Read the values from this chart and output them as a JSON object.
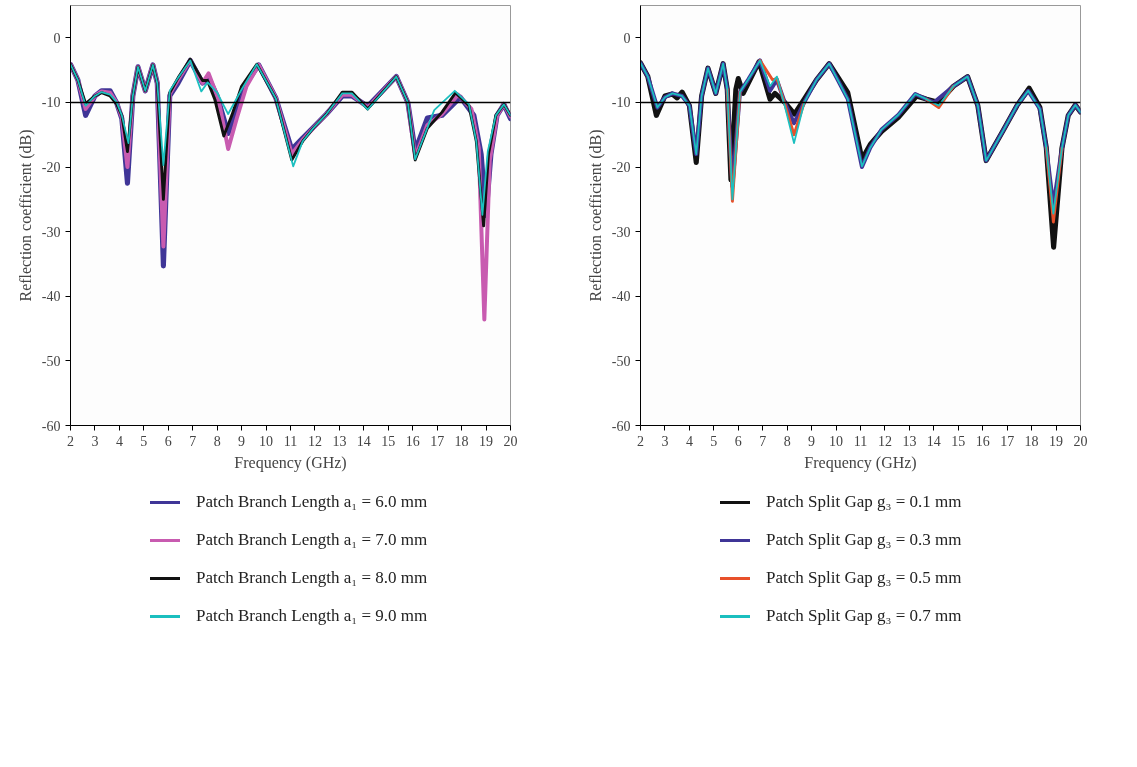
{
  "chart_data": [
    {
      "type": "line",
      "xlabel": "Frequency (GHz)",
      "ylabel": "Reflection coefficient (dB)",
      "xlim": [
        2,
        20
      ],
      "ylim": [
        -60,
        5
      ],
      "xticks": [
        2,
        3,
        4,
        5,
        6,
        7,
        8,
        9,
        10,
        11,
        12,
        13,
        14,
        15,
        16,
        17,
        18,
        19,
        20
      ],
      "yticks": [
        -60,
        -50,
        -40,
        -30,
        -20,
        -10,
        0
      ],
      "legend": "bottom",
      "grid": false,
      "line_style": "solid",
      "ref_lines": [
        {
          "axis": "y",
          "value": -10,
          "color": "#000000"
        }
      ],
      "series": [
        {
          "name": "Patch Branch Length a₁ = 6.0 mm",
          "color": "#3f3597",
          "x": [
            2.0,
            2.3,
            2.62,
            3.0,
            3.27,
            3.62,
            3.88,
            4.1,
            4.33,
            4.55,
            4.76,
            5.06,
            5.37,
            5.55,
            5.8,
            6.06,
            6.4,
            6.9,
            7.4,
            7.65,
            8.0,
            8.45,
            8.8,
            9.2,
            9.7,
            10.4,
            11.05,
            11.5,
            11.95,
            12.47,
            13.12,
            13.51,
            14.16,
            15.33,
            15.8,
            16.1,
            16.6,
            17.2,
            17.95,
            18.5,
            18.8,
            19.0,
            19.2,
            19.45,
            19.73,
            20.0
          ],
          "values": [
            -4.1,
            -6.5,
            -12,
            -9,
            -8.2,
            -8.2,
            -10,
            -12.5,
            -22.5,
            -9,
            -4.5,
            -8.2,
            -4.2,
            -7,
            -35.3,
            -9,
            -7,
            -3.5,
            -7,
            -6.2,
            -9,
            -14.8,
            -11,
            -7,
            -4.2,
            -9.3,
            -17.3,
            -15.5,
            -13.8,
            -11.8,
            -9,
            -9,
            -10.6,
            -6.0,
            -10,
            -17.5,
            -12.4,
            -12,
            -9.2,
            -12,
            -18,
            -27.5,
            -18,
            -12,
            -10.3,
            -12.5
          ]
        },
        {
          "name": "Patch Branch Length a₁ = 7.0 mm",
          "color": "#c85bb0",
          "x": [
            2.0,
            2.3,
            2.62,
            3.0,
            3.27,
            3.62,
            3.88,
            4.1,
            4.33,
            4.55,
            4.76,
            5.06,
            5.37,
            5.55,
            5.8,
            6.06,
            6.4,
            6.9,
            7.4,
            7.65,
            8.05,
            8.45,
            8.8,
            9.2,
            9.7,
            10.4,
            11.05,
            11.5,
            11.95,
            12.47,
            13.12,
            13.51,
            14.16,
            15.33,
            15.8,
            16.1,
            16.6,
            17.2,
            17.85,
            18.4,
            18.7,
            18.93,
            19.15,
            19.45,
            19.73,
            20.0
          ],
          "values": [
            -4.1,
            -6.5,
            -11,
            -9,
            -8.3,
            -8.5,
            -10,
            -12.3,
            -20,
            -9,
            -4.5,
            -8.2,
            -4.2,
            -7,
            -32.3,
            -8.7,
            -6.5,
            -3.5,
            -7,
            -5.5,
            -9.5,
            -17.2,
            -12.5,
            -7.5,
            -4.2,
            -9.3,
            -18,
            -15.8,
            -13.9,
            -11.8,
            -8.8,
            -8.8,
            -10.8,
            -6.0,
            -10,
            -18.5,
            -13.5,
            -11.8,
            -8.8,
            -11,
            -17,
            -43.6,
            -19,
            -12,
            -10.3,
            -12.2
          ]
        },
        {
          "name": "Patch Branch Length a₁ = 8.0 mm",
          "color": "#111111",
          "x": [
            2.0,
            2.3,
            2.62,
            3.0,
            3.27,
            3.62,
            3.88,
            4.1,
            4.33,
            4.55,
            4.76,
            5.06,
            5.37,
            5.55,
            5.8,
            6.06,
            6.4,
            6.9,
            7.4,
            7.6,
            7.9,
            8.27,
            8.6,
            9.0,
            9.62,
            10.4,
            11.05,
            11.5,
            11.95,
            12.47,
            13.12,
            13.51,
            14.16,
            15.33,
            15.8,
            16.1,
            16.6,
            17.2,
            17.75,
            18.3,
            18.6,
            18.9,
            19.1,
            19.4,
            19.73,
            20.0
          ],
          "values": [
            -4.1,
            -6.5,
            -10.2,
            -9,
            -8.5,
            -9,
            -10.2,
            -12,
            -17.6,
            -9,
            -4.5,
            -8.2,
            -4.2,
            -7,
            -25,
            -8.5,
            -6.2,
            -3.3,
            -6.6,
            -6.6,
            -9.5,
            -15.2,
            -12,
            -7.5,
            -4.1,
            -9.4,
            -18.9,
            -16,
            -13.9,
            -11.8,
            -8.4,
            -8.4,
            -11,
            -6.0,
            -10,
            -18.9,
            -14,
            -11.5,
            -8.5,
            -10.5,
            -16,
            -29.1,
            -18,
            -12,
            -10.3,
            -12
          ]
        },
        {
          "name": "Patch Branch Length a₁ = 9.0 mm",
          "color": "#1bbfbf",
          "x": [
            2.0,
            2.3,
            2.62,
            3.0,
            3.27,
            3.62,
            3.88,
            4.1,
            4.37,
            4.55,
            4.76,
            5.06,
            5.37,
            5.55,
            5.8,
            6.06,
            6.4,
            6.9,
            7.35,
            7.61,
            8.0,
            8.45,
            9.0,
            9.62,
            10.4,
            11.11,
            11.5,
            11.95,
            12.47,
            13.12,
            13.51,
            14.16,
            15.33,
            15.8,
            16.1,
            16.88,
            17.72,
            18.3,
            18.6,
            18.85,
            19.07,
            19.4,
            19.73,
            20.0
          ],
          "values": [
            -4.1,
            -6.5,
            -10.5,
            -9,
            -8.4,
            -8.8,
            -9.9,
            -12,
            -16.3,
            -9,
            -4.5,
            -8.2,
            -4.2,
            -7,
            -19.7,
            -8.2,
            -6.2,
            -3.5,
            -8.3,
            -6.9,
            -8.5,
            -11.8,
            -8,
            -4.1,
            -9.4,
            -19.9,
            -16,
            -13.9,
            -11.8,
            -8.6,
            -8.6,
            -11.1,
            -6.0,
            -10,
            -18.8,
            -11.2,
            -8.2,
            -10.3,
            -16,
            -27.4,
            -17.6,
            -12,
            -10.3,
            -12
          ]
        }
      ]
    },
    {
      "type": "line",
      "xlabel": "Frequency (GHz)",
      "ylabel": "Reflection coefficient (dB)",
      "xlim": [
        2,
        20
      ],
      "ylim": [
        -60,
        5
      ],
      "xticks": [
        2,
        3,
        4,
        5,
        6,
        7,
        8,
        9,
        10,
        11,
        12,
        13,
        14,
        15,
        16,
        17,
        18,
        19,
        20
      ],
      "yticks": [
        -60,
        -50,
        -40,
        -30,
        -20,
        -10,
        0
      ],
      "legend": "bottom",
      "grid": false,
      "line_style": "solid",
      "ref_lines": [
        {
          "axis": "y",
          "value": -10,
          "color": "#000000"
        }
      ],
      "series": [
        {
          "name": "Patch Split Gap g₃ = 0.1 mm",
          "color": "#111111",
          "x": [
            2.0,
            2.3,
            2.65,
            3.0,
            3.3,
            3.5,
            3.7,
            4.0,
            4.28,
            4.5,
            4.76,
            5.08,
            5.38,
            5.55,
            5.7,
            5.9,
            6.0,
            6.2,
            6.85,
            7.3,
            7.5,
            7.9,
            8.3,
            8.7,
            9.2,
            9.72,
            10.48,
            11.06,
            11.4,
            11.86,
            12.55,
            13.3,
            13.7,
            14.2,
            14.8,
            15.38,
            15.8,
            16.14,
            16.83,
            17.4,
            17.9,
            18.34,
            18.6,
            18.9,
            19.24,
            19.5,
            19.79,
            20.0
          ],
          "values": [
            -3.9,
            -6,
            -12,
            -9,
            -8.7,
            -9.3,
            -8.4,
            -10.5,
            -19.3,
            -9,
            -4.7,
            -8.6,
            -4.0,
            -8,
            -22,
            -8,
            -6.3,
            -8.6,
            -3.7,
            -9.5,
            -8.6,
            -10,
            -11.8,
            -9.5,
            -6.5,
            -4.0,
            -8.5,
            -18.8,
            -16.5,
            -14.5,
            -12.3,
            -9,
            -9.5,
            -10,
            -7.5,
            -6.0,
            -10.5,
            -19.0,
            -14.4,
            -10.5,
            -7.8,
            -10.8,
            -17,
            -32.4,
            -17.1,
            -12,
            -10.4,
            -11.5
          ]
        },
        {
          "name": "Patch Split Gap g₃ = 0.3 mm",
          "color": "#3f3597",
          "x": [
            2.0,
            2.3,
            2.69,
            3.0,
            3.31,
            3.7,
            4.0,
            4.28,
            4.5,
            4.76,
            5.08,
            5.38,
            5.55,
            5.76,
            6.07,
            6.4,
            6.89,
            7.3,
            7.58,
            7.9,
            8.28,
            8.7,
            9.2,
            9.72,
            10.48,
            11.06,
            11.4,
            11.86,
            12.55,
            13.24,
            13.7,
            14.0,
            14.8,
            15.38,
            15.8,
            16.14,
            16.83,
            17.4,
            17.86,
            18.34,
            18.6,
            18.89,
            19.24,
            19.5,
            19.79,
            20.0
          ],
          "values": [
            -3.9,
            -6,
            -10.8,
            -9.2,
            -8.6,
            -9,
            -10.5,
            -18,
            -9,
            -4.7,
            -8.6,
            -4.0,
            -8,
            -23,
            -8.4,
            -6.5,
            -3.5,
            -8.2,
            -6.5,
            -10,
            -13.2,
            -10,
            -6.5,
            -4.0,
            -9.5,
            -20,
            -17,
            -14.2,
            -11.9,
            -8.7,
            -9.5,
            -10,
            -7.5,
            -6.0,
            -10.5,
            -19.0,
            -14.4,
            -10.5,
            -8.2,
            -11.0,
            -17,
            -26,
            -17.1,
            -12,
            -10.4,
            -11.5
          ]
        },
        {
          "name": "Patch Split Gap g₃ = 0.5 mm",
          "color": "#e8502a",
          "x": [
            5.55,
            5.76,
            6.07,
            6.4,
            6.89,
            7.4,
            7.58,
            7.9,
            8.28,
            8.7,
            9.2,
            13.7,
            14.2,
            14.8,
            15.0,
            18.6,
            18.89,
            19.24
          ],
          "values": [
            -8,
            -25.3,
            -8.4,
            null,
            -3.5,
            -6.5,
            -6.3,
            -10.2,
            -15,
            -10,
            null,
            -9.5,
            -10.8,
            -7.5,
            null,
            -17,
            -28.5,
            -17.1
          ]
        },
        {
          "name": "Patch Split Gap g₃ = 0.7 mm",
          "color": "#1bbfbf",
          "x": [
            2.0,
            2.3,
            2.69,
            3.0,
            3.31,
            3.7,
            4.0,
            4.28,
            4.5,
            4.76,
            5.08,
            5.38,
            5.55,
            5.76,
            6.07,
            6.4,
            6.89,
            7.3,
            7.58,
            7.9,
            8.28,
            8.7,
            9.2,
            9.72,
            10.48,
            11.06,
            11.4,
            11.86,
            12.55,
            13.24,
            13.7,
            14.2,
            14.8,
            15.38,
            15.8,
            16.14,
            16.83,
            17.4,
            17.86,
            18.34,
            18.6,
            18.89,
            19.24,
            19.5,
            19.79,
            20.0
          ],
          "values": [
            -3.9,
            -6,
            -10.8,
            -9.2,
            -8.6,
            -9,
            -10.5,
            -18,
            -9,
            -4.7,
            -8.6,
            -4.0,
            -8,
            -25,
            -8.4,
            -6.5,
            -3.5,
            -7.5,
            -6.0,
            -10.5,
            -16.3,
            -10,
            -6.5,
            -4.0,
            -9.5,
            -19.9,
            -17,
            -14.2,
            -11.9,
            -8.7,
            -9.5,
            -10.5,
            -7.5,
            -6.0,
            -10.5,
            -19.0,
            -14.4,
            -10.5,
            -8.2,
            -11.0,
            -17,
            -27.2,
            -17.1,
            -12,
            -10.4,
            -11.5
          ]
        }
      ]
    }
  ]
}
